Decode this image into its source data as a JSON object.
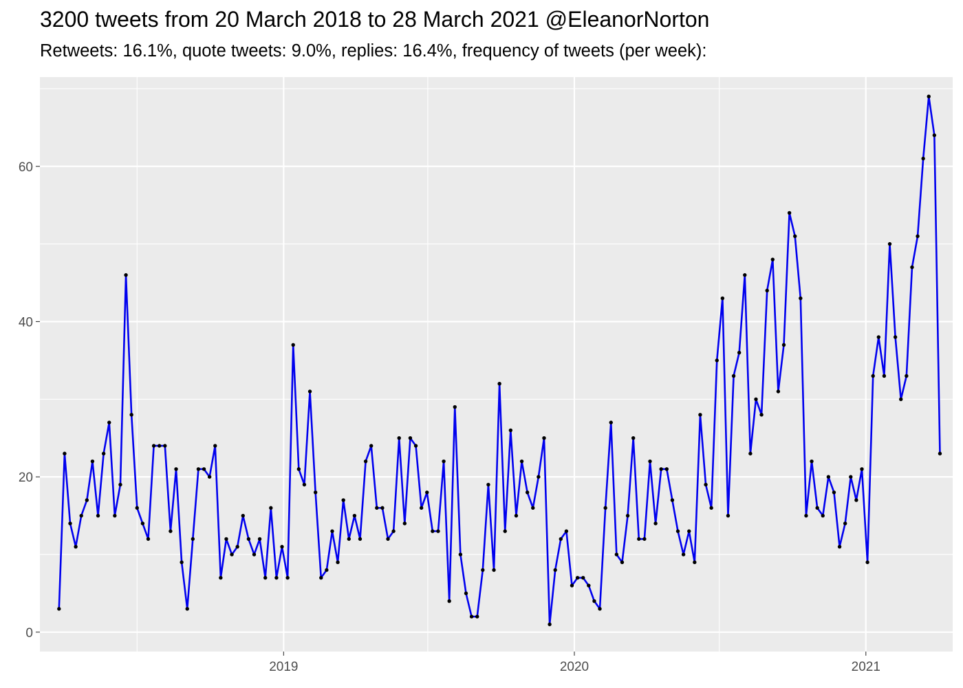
{
  "chart_data": {
    "type": "line",
    "title": "3200 tweets from 20 March 2018 to 28 March 2021 @EleanorNorton",
    "subtitle": "Retweets: 16.1%, quote tweets: 9.0%, replies: 16.4%, frequency of tweets (per week):",
    "xlabel": "",
    "ylabel": "",
    "x_start": "2018-03-25",
    "x_step_days": 7,
    "x_ticks": [
      "2019",
      "2020",
      "2021"
    ],
    "y_ticks": [
      0,
      20,
      40,
      60
    ],
    "xlim": [
      "2018-03-01",
      "2021-04-20"
    ],
    "ylim": [
      -2.5,
      71.5
    ],
    "grid": true,
    "line_color": "#0000ee",
    "point_color": "#000000",
    "panel_background": "#ebebeb",
    "grid_color": "#ffffff",
    "series": [
      {
        "values": [
          3,
          23,
          14,
          11,
          15,
          17,
          22,
          15,
          23,
          27,
          15,
          19,
          46,
          28,
          16,
          14,
          12,
          24,
          24,
          24,
          13,
          21,
          9,
          3,
          12,
          21,
          21,
          20,
          24,
          7,
          12,
          10,
          11,
          15,
          12,
          10,
          12,
          7,
          16,
          7,
          11,
          7,
          37,
          21,
          19,
          31,
          18,
          7,
          8,
          13,
          9,
          17,
          12,
          15,
          12,
          22,
          24,
          16,
          16,
          12,
          13,
          25,
          14,
          25,
          24,
          16,
          18,
          13,
          13,
          22,
          4,
          29,
          10,
          5,
          2,
          2,
          8,
          19,
          8,
          32,
          13,
          26,
          15,
          22,
          18,
          16,
          20,
          25,
          1,
          8,
          12,
          13,
          6,
          7,
          7,
          6,
          4,
          3,
          16,
          27,
          10,
          9,
          15,
          25,
          12,
          12,
          22,
          14,
          21,
          21,
          17,
          13,
          10,
          13,
          9,
          28,
          19,
          16,
          35,
          43,
          15,
          33,
          36,
          46,
          23,
          30,
          28,
          44,
          48,
          31,
          37,
          54,
          51,
          43,
          15,
          22,
          16,
          15,
          20,
          18,
          11,
          14,
          20,
          17,
          21,
          9,
          33,
          38,
          33,
          50,
          38,
          30,
          33,
          47,
          51,
          61,
          69,
          64,
          23
        ]
      }
    ]
  }
}
